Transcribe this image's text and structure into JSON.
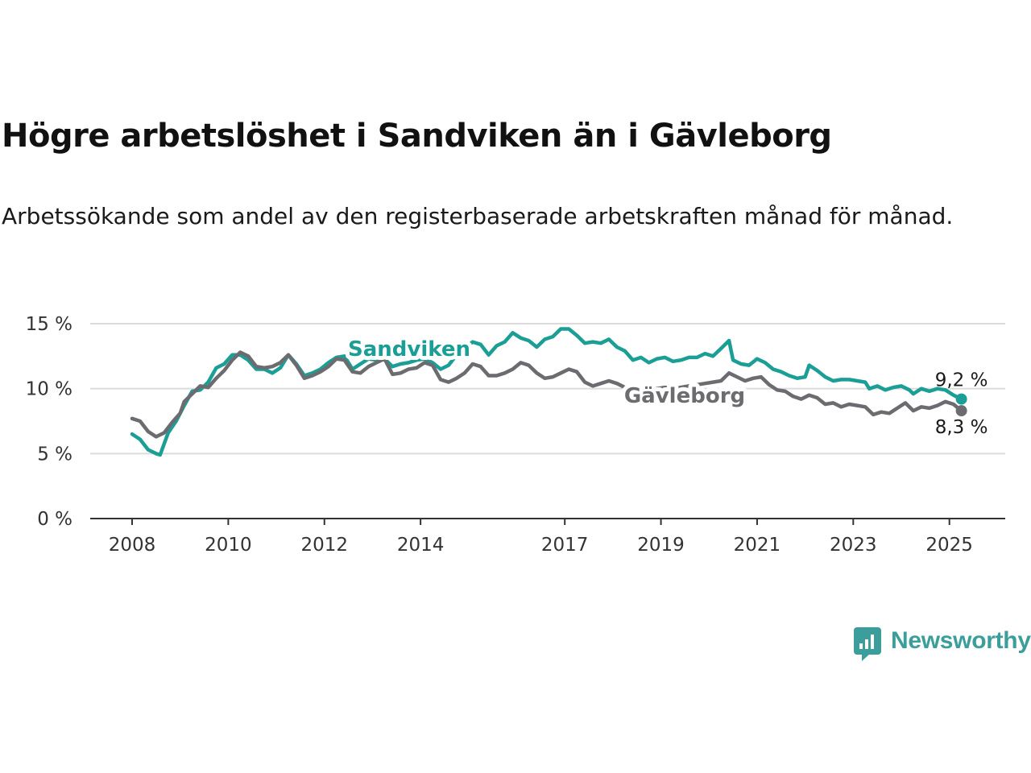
{
  "title": "Högre arbetslöshet i Sandviken än i Gävleborg",
  "subtitle": "Arbetssökande som andel av den registerbaserade arbetskraften månad för månad.",
  "brand": {
    "name": "Newsworthy",
    "color": "#3c9e9a",
    "icon": "newsworthy-logo-icon"
  },
  "chart_data": {
    "type": "line",
    "title": "Högre arbetslöshet i Sandviken än i Gävleborg",
    "subtitle": "Arbetssökande som andel av den registerbaserade arbetskraften månad för månad.",
    "xlabel": "",
    "ylabel": "",
    "x_ticks": [
      "2008",
      "2010",
      "2012",
      "2014",
      "2017",
      "2019",
      "2021",
      "2023",
      "2025"
    ],
    "y_ticks": [
      "0 %",
      "5 %",
      "10 %",
      "15 %"
    ],
    "ylim": [
      0,
      15
    ],
    "grid": true,
    "legend": "inline labels",
    "series": [
      {
        "name": "Sandviken",
        "color": "#1a9e95",
        "end_label": "9,2 %",
        "points": [
          [
            "2008-01",
            6.5
          ],
          [
            "2008-03",
            6.1
          ],
          [
            "2008-05",
            5.3
          ],
          [
            "2008-07",
            5.0
          ],
          [
            "2008-08",
            4.9
          ],
          [
            "2008-10",
            6.6
          ],
          [
            "2008-12",
            7.5
          ],
          [
            "2009-02",
            8.7
          ],
          [
            "2009-04",
            9.8
          ],
          [
            "2009-06",
            9.9
          ],
          [
            "2009-08",
            10.5
          ],
          [
            "2009-10",
            11.6
          ],
          [
            "2009-12",
            11.9
          ],
          [
            "2010-02",
            12.6
          ],
          [
            "2010-04",
            12.6
          ],
          [
            "2010-06",
            12.2
          ],
          [
            "2010-08",
            11.5
          ],
          [
            "2010-10",
            11.5
          ],
          [
            "2010-12",
            11.2
          ],
          [
            "2011-02",
            11.6
          ],
          [
            "2011-04",
            12.6
          ],
          [
            "2011-06",
            11.9
          ],
          [
            "2011-08",
            11.0
          ],
          [
            "2011-10",
            11.2
          ],
          [
            "2011-12",
            11.5
          ],
          [
            "2012-02",
            12.0
          ],
          [
            "2012-04",
            12.4
          ],
          [
            "2012-06",
            12.5
          ],
          [
            "2012-08",
            11.5
          ],
          [
            "2012-10",
            11.9
          ],
          [
            "2012-12",
            12.3
          ],
          [
            "2013-02",
            12.2
          ],
          [
            "2013-04",
            12.3
          ],
          [
            "2013-06",
            11.7
          ],
          [
            "2013-08",
            11.9
          ],
          [
            "2013-10",
            12.0
          ],
          [
            "2013-12",
            12.2
          ],
          [
            "2014-02",
            12.3
          ],
          [
            "2014-04",
            12.0
          ],
          [
            "2014-06",
            11.5
          ],
          [
            "2014-08",
            11.8
          ],
          [
            "2014-10",
            12.6
          ],
          [
            "2014-12",
            13.1
          ],
          [
            "2015-02",
            13.6
          ],
          [
            "2015-04",
            13.4
          ],
          [
            "2015-06",
            12.6
          ],
          [
            "2015-08",
            13.3
          ],
          [
            "2015-10",
            13.6
          ],
          [
            "2015-12",
            14.3
          ],
          [
            "2016-02",
            13.9
          ],
          [
            "2016-04",
            13.7
          ],
          [
            "2016-06",
            13.2
          ],
          [
            "2016-08",
            13.8
          ],
          [
            "2016-10",
            14.0
          ],
          [
            "2016-12",
            14.6
          ],
          [
            "2017-02",
            14.6
          ],
          [
            "2017-04",
            14.1
          ],
          [
            "2017-06",
            13.5
          ],
          [
            "2017-08",
            13.6
          ],
          [
            "2017-10",
            13.5
          ],
          [
            "2017-12",
            13.8
          ],
          [
            "2018-02",
            13.2
          ],
          [
            "2018-04",
            12.9
          ],
          [
            "2018-06",
            12.2
          ],
          [
            "2018-08",
            12.4
          ],
          [
            "2018-10",
            12.0
          ],
          [
            "2018-12",
            12.3
          ],
          [
            "2019-02",
            12.4
          ],
          [
            "2019-04",
            12.1
          ],
          [
            "2019-06",
            12.2
          ],
          [
            "2019-08",
            12.4
          ],
          [
            "2019-10",
            12.4
          ],
          [
            "2019-12",
            12.7
          ],
          [
            "2020-02",
            12.5
          ],
          [
            "2020-04",
            13.1
          ],
          [
            "2020-06",
            13.7
          ],
          [
            "2020-07",
            12.2
          ],
          [
            "2020-09",
            11.9
          ],
          [
            "2020-11",
            11.8
          ],
          [
            "2021-01",
            12.3
          ],
          [
            "2021-03",
            12.0
          ],
          [
            "2021-05",
            11.5
          ],
          [
            "2021-07",
            11.3
          ],
          [
            "2021-09",
            11.0
          ],
          [
            "2021-11",
            10.8
          ],
          [
            "2022-01",
            10.9
          ],
          [
            "2022-02",
            11.8
          ],
          [
            "2022-04",
            11.4
          ],
          [
            "2022-06",
            10.9
          ],
          [
            "2022-08",
            10.6
          ],
          [
            "2022-10",
            10.7
          ],
          [
            "2022-12",
            10.7
          ],
          [
            "2023-02",
            10.6
          ],
          [
            "2023-04",
            10.5
          ],
          [
            "2023-05",
            10.0
          ],
          [
            "2023-07",
            10.2
          ],
          [
            "2023-09",
            9.9
          ],
          [
            "2023-11",
            10.1
          ],
          [
            "2024-01",
            10.2
          ],
          [
            "2024-03",
            9.9
          ],
          [
            "2024-04",
            9.6
          ],
          [
            "2024-06",
            10.0
          ],
          [
            "2024-08",
            9.8
          ],
          [
            "2024-10",
            10.0
          ],
          [
            "2024-12",
            9.9
          ],
          [
            "2025-02",
            9.5
          ],
          [
            "2025-04",
            9.2
          ]
        ]
      },
      {
        "name": "Gävleborg",
        "color": "#6b6b70",
        "end_label": "8,3 %",
        "points": [
          [
            "2008-01",
            7.7
          ],
          [
            "2008-03",
            7.5
          ],
          [
            "2008-05",
            6.7
          ],
          [
            "2008-07",
            6.3
          ],
          [
            "2008-09",
            6.6
          ],
          [
            "2008-11",
            7.4
          ],
          [
            "2009-01",
            8.1
          ],
          [
            "2009-02",
            9.0
          ],
          [
            "2009-04",
            9.6
          ],
          [
            "2009-06",
            10.2
          ],
          [
            "2009-08",
            10.1
          ],
          [
            "2009-10",
            10.8
          ],
          [
            "2009-12",
            11.4
          ],
          [
            "2010-02",
            12.2
          ],
          [
            "2010-04",
            12.8
          ],
          [
            "2010-06",
            12.5
          ],
          [
            "2010-08",
            11.7
          ],
          [
            "2010-10",
            11.6
          ],
          [
            "2010-12",
            11.7
          ],
          [
            "2011-02",
            12.0
          ],
          [
            "2011-04",
            12.6
          ],
          [
            "2011-06",
            11.8
          ],
          [
            "2011-08",
            10.8
          ],
          [
            "2011-10",
            11.0
          ],
          [
            "2011-12",
            11.3
          ],
          [
            "2012-02",
            11.7
          ],
          [
            "2012-04",
            12.3
          ],
          [
            "2012-06",
            12.2
          ],
          [
            "2012-08",
            11.3
          ],
          [
            "2012-10",
            11.2
          ],
          [
            "2012-12",
            11.7
          ],
          [
            "2013-02",
            12.0
          ],
          [
            "2013-04",
            12.3
          ],
          [
            "2013-06",
            11.1
          ],
          [
            "2013-08",
            11.2
          ],
          [
            "2013-10",
            11.5
          ],
          [
            "2013-12",
            11.6
          ],
          [
            "2014-02",
            12.0
          ],
          [
            "2014-04",
            11.8
          ],
          [
            "2014-06",
            10.7
          ],
          [
            "2014-08",
            10.5
          ],
          [
            "2014-10",
            10.8
          ],
          [
            "2014-12",
            11.2
          ],
          [
            "2015-02",
            11.9
          ],
          [
            "2015-04",
            11.7
          ],
          [
            "2015-06",
            11.0
          ],
          [
            "2015-08",
            11.0
          ],
          [
            "2015-10",
            11.2
          ],
          [
            "2015-12",
            11.5
          ],
          [
            "2016-02",
            12.0
          ],
          [
            "2016-04",
            11.8
          ],
          [
            "2016-06",
            11.2
          ],
          [
            "2016-08",
            10.8
          ],
          [
            "2016-10",
            10.9
          ],
          [
            "2016-12",
            11.2
          ],
          [
            "2017-02",
            11.5
          ],
          [
            "2017-04",
            11.3
          ],
          [
            "2017-06",
            10.5
          ],
          [
            "2017-08",
            10.2
          ],
          [
            "2017-10",
            10.4
          ],
          [
            "2017-12",
            10.6
          ],
          [
            "2018-02",
            10.4
          ],
          [
            "2018-04",
            10.1
          ],
          [
            "2018-06",
            10.0
          ],
          [
            "2018-08",
            10.0
          ],
          [
            "2018-10",
            9.9
          ],
          [
            "2018-12",
            10.0
          ],
          [
            "2019-02",
            10.1
          ],
          [
            "2019-04",
            10.0
          ],
          [
            "2019-06",
            10.1
          ],
          [
            "2019-08",
            10.2
          ],
          [
            "2019-10",
            10.3
          ],
          [
            "2019-12",
            10.4
          ],
          [
            "2020-02",
            10.5
          ],
          [
            "2020-04",
            10.6
          ],
          [
            "2020-06",
            11.2
          ],
          [
            "2020-08",
            10.9
          ],
          [
            "2020-10",
            10.6
          ],
          [
            "2020-12",
            10.8
          ],
          [
            "2021-02",
            10.9
          ],
          [
            "2021-04",
            10.3
          ],
          [
            "2021-06",
            9.9
          ],
          [
            "2021-08",
            9.8
          ],
          [
            "2021-10",
            9.4
          ],
          [
            "2021-12",
            9.2
          ],
          [
            "2022-02",
            9.5
          ],
          [
            "2022-04",
            9.3
          ],
          [
            "2022-06",
            8.8
          ],
          [
            "2022-08",
            8.9
          ],
          [
            "2022-10",
            8.6
          ],
          [
            "2022-12",
            8.8
          ],
          [
            "2023-02",
            8.7
          ],
          [
            "2023-04",
            8.6
          ],
          [
            "2023-06",
            8.0
          ],
          [
            "2023-08",
            8.2
          ],
          [
            "2023-10",
            8.1
          ],
          [
            "2023-12",
            8.5
          ],
          [
            "2024-02",
            8.9
          ],
          [
            "2024-04",
            8.3
          ],
          [
            "2024-06",
            8.6
          ],
          [
            "2024-08",
            8.5
          ],
          [
            "2024-10",
            8.7
          ],
          [
            "2024-12",
            9.0
          ],
          [
            "2025-02",
            8.8
          ],
          [
            "2025-04",
            8.3
          ]
        ]
      }
    ]
  }
}
